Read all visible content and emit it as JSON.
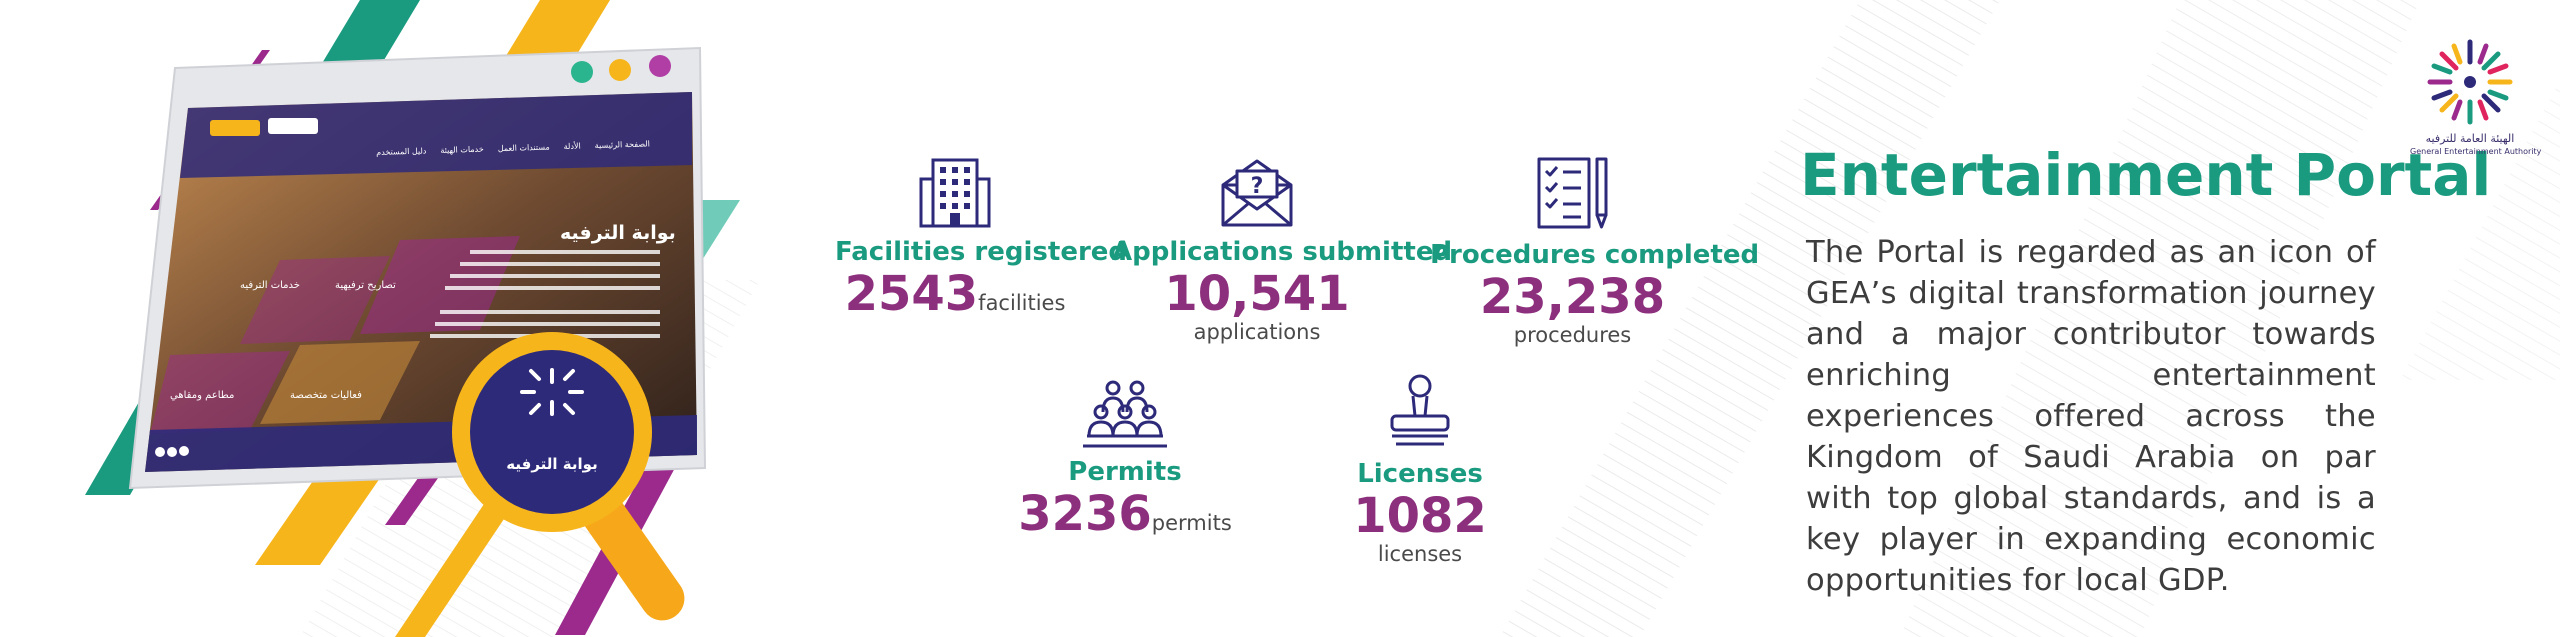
{
  "portal": {
    "title": "Entertainment Portal",
    "description": "The Portal is regarded as an icon of GEA’s digital transformation journey and a major contributor towards enriching entertainment experiences offered across the Kingdom of Saudi Arabia on par with top global standards, and is a key player in expanding economic opportunities for local GDP."
  },
  "logo": {
    "arabic": "الهيئة العامة للترفيه",
    "english": "General Entertainment Authority"
  },
  "stats": [
    {
      "label": "Facilities registered",
      "value": "2543",
      "unit": "facilities",
      "icon": "building-icon"
    },
    {
      "label": "Applications submitted",
      "value": "10,541",
      "unit": "applications",
      "icon": "envelope-question-icon"
    },
    {
      "label": "Procedures completed",
      "value": "23,238",
      "unit": "procedures",
      "icon": "checklist-icon"
    },
    {
      "label": "Permits",
      "value": "3236",
      "unit": "permits",
      "icon": "group-icon"
    },
    {
      "label": "Licenses",
      "value": "1082",
      "unit": "licenses",
      "icon": "stamp-icon"
    }
  ],
  "mockup": {
    "heading": "بوابة الترفيه",
    "nav": [
      "الصفحة الرئيسية",
      "الأدلة",
      "مستندات العمل",
      "خدمات الهيئة",
      "دليل المستخدم"
    ],
    "tiles": [
      "خدمات الترفيه",
      "تصاريح ترفيهية",
      "فعاليات متخصصة",
      "مطاعم ومقاهي"
    ],
    "magnifier_title": "بوابة الترفيه"
  },
  "colors": {
    "teal": "#1a9b80",
    "purple": "#8c2f7c",
    "navy": "#2e2a7a",
    "yellow": "#f7b51c",
    "magenta": "#9b2a8c",
    "text": "#3d3d3d"
  }
}
